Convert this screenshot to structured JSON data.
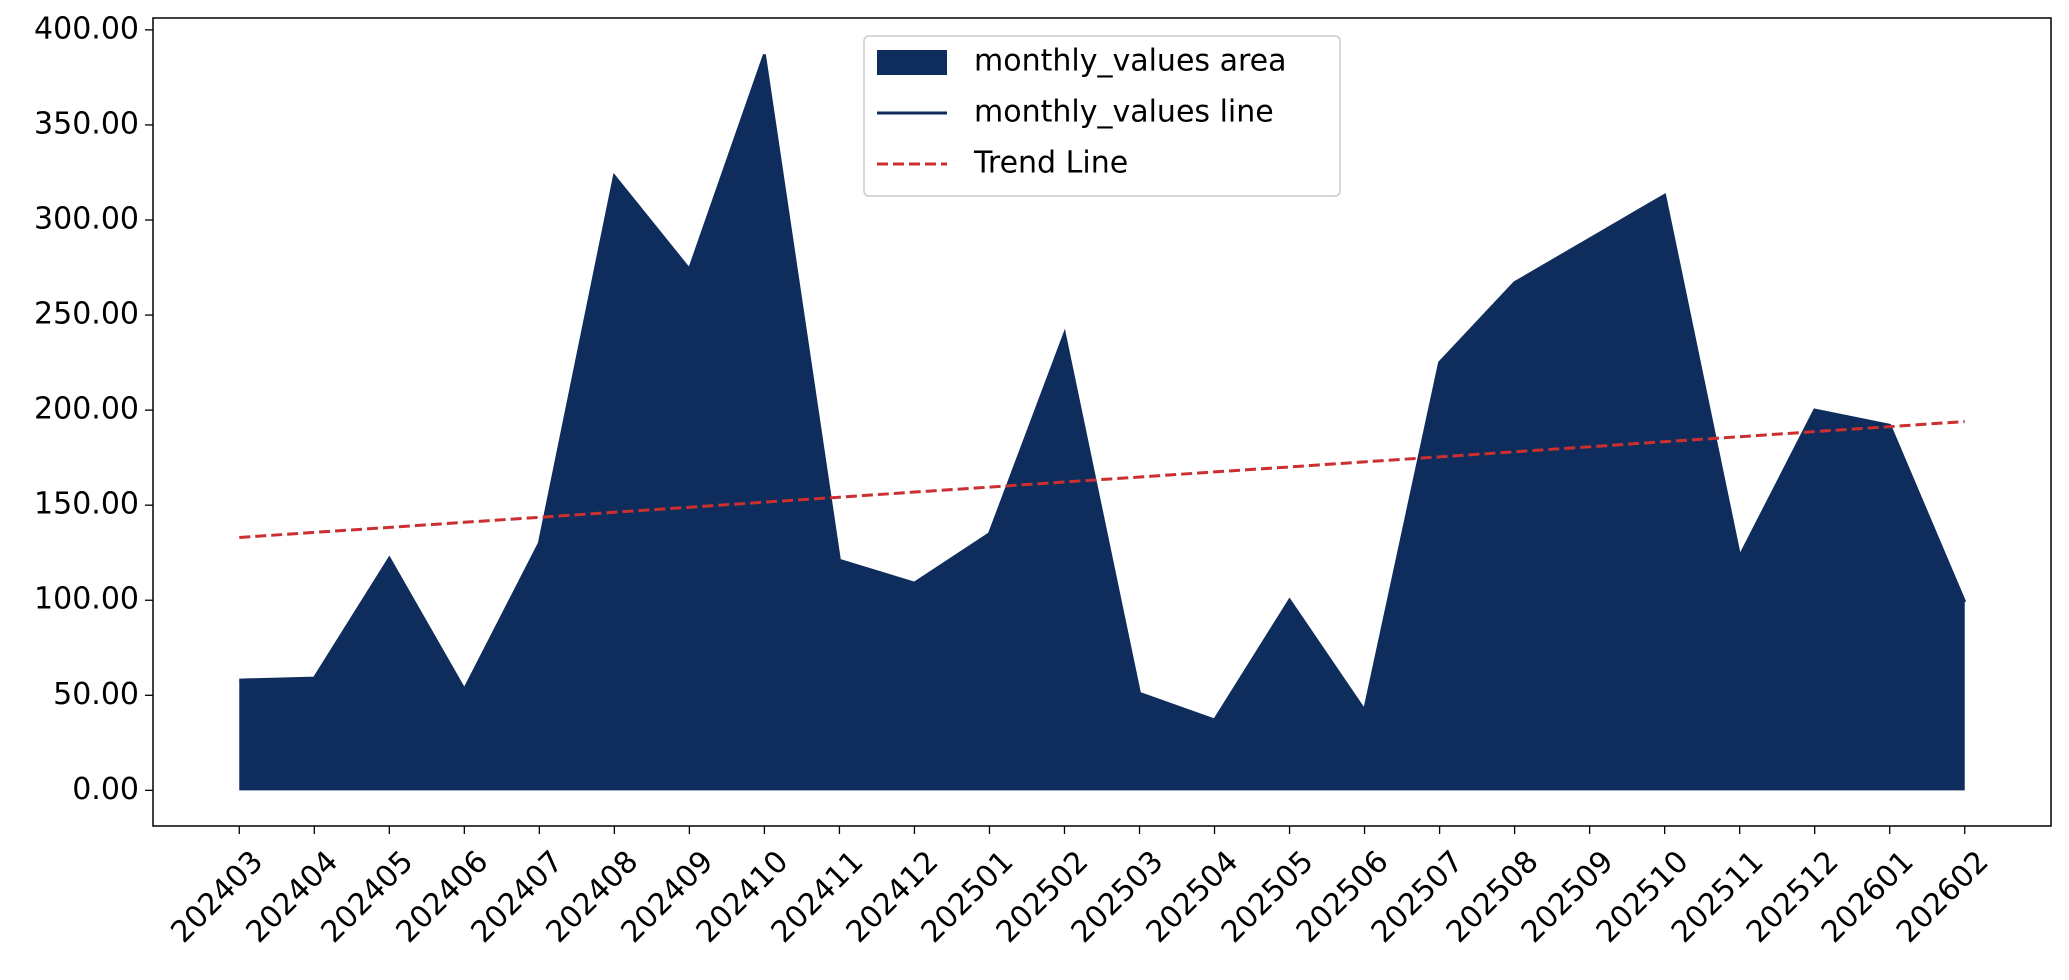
{
  "chart_data": {
    "type": "area",
    "categories": [
      "202403",
      "202404",
      "202405",
      "202406",
      "202407",
      "202408",
      "202409",
      "202410",
      "202411",
      "202412",
      "202501",
      "202502",
      "202503",
      "202504",
      "202505",
      "202506",
      "202507",
      "202508",
      "202509",
      "202510",
      "202511",
      "202512",
      "202601",
      "202602"
    ],
    "series": [
      {
        "name": "monthly_values area",
        "kind": "area",
        "color": "#0f2d5c",
        "values": [
          58,
          59,
          122,
          53,
          130,
          323,
          274,
          387,
          121,
          109,
          135,
          240,
          51,
          37,
          100,
          42,
          225,
          267,
          290,
          313,
          123,
          200,
          192,
          99
        ]
      },
      {
        "name": "monthly_values line",
        "kind": "line",
        "color": "#0f2d5c",
        "values": [
          58,
          59,
          122,
          53,
          130,
          323,
          274,
          387,
          121,
          109,
          135,
          240,
          51,
          37,
          100,
          42,
          225,
          267,
          290,
          313,
          123,
          200,
          192,
          99
        ]
      },
      {
        "name": "Trend Line",
        "kind": "dashed",
        "color": "#cc2f2f",
        "values": [
          133,
          135.7,
          138.3,
          141.0,
          143.6,
          146.3,
          148.9,
          151.6,
          154.2,
          156.9,
          159.5,
          162.2,
          164.8,
          167.5,
          170.1,
          172.8,
          175.4,
          178.1,
          180.7,
          183.4,
          186.0,
          188.7,
          191.3,
          194.0
        ]
      }
    ],
    "ylim": [
      -18.75,
      406.25
    ],
    "yticks": [
      {
        "value": 0,
        "label": "0.00"
      },
      {
        "value": 50,
        "label": "50.00"
      },
      {
        "value": 100,
        "label": "100.00"
      },
      {
        "value": 150,
        "label": "150.00"
      },
      {
        "value": 200,
        "label": "200.00"
      },
      {
        "value": 250,
        "label": "250.00"
      },
      {
        "value": 300,
        "label": "300.00"
      },
      {
        "value": 350,
        "label": "350.00"
      },
      {
        "value": 400,
        "label": "400.00"
      }
    ],
    "legend": "upper center",
    "grid": false
  }
}
